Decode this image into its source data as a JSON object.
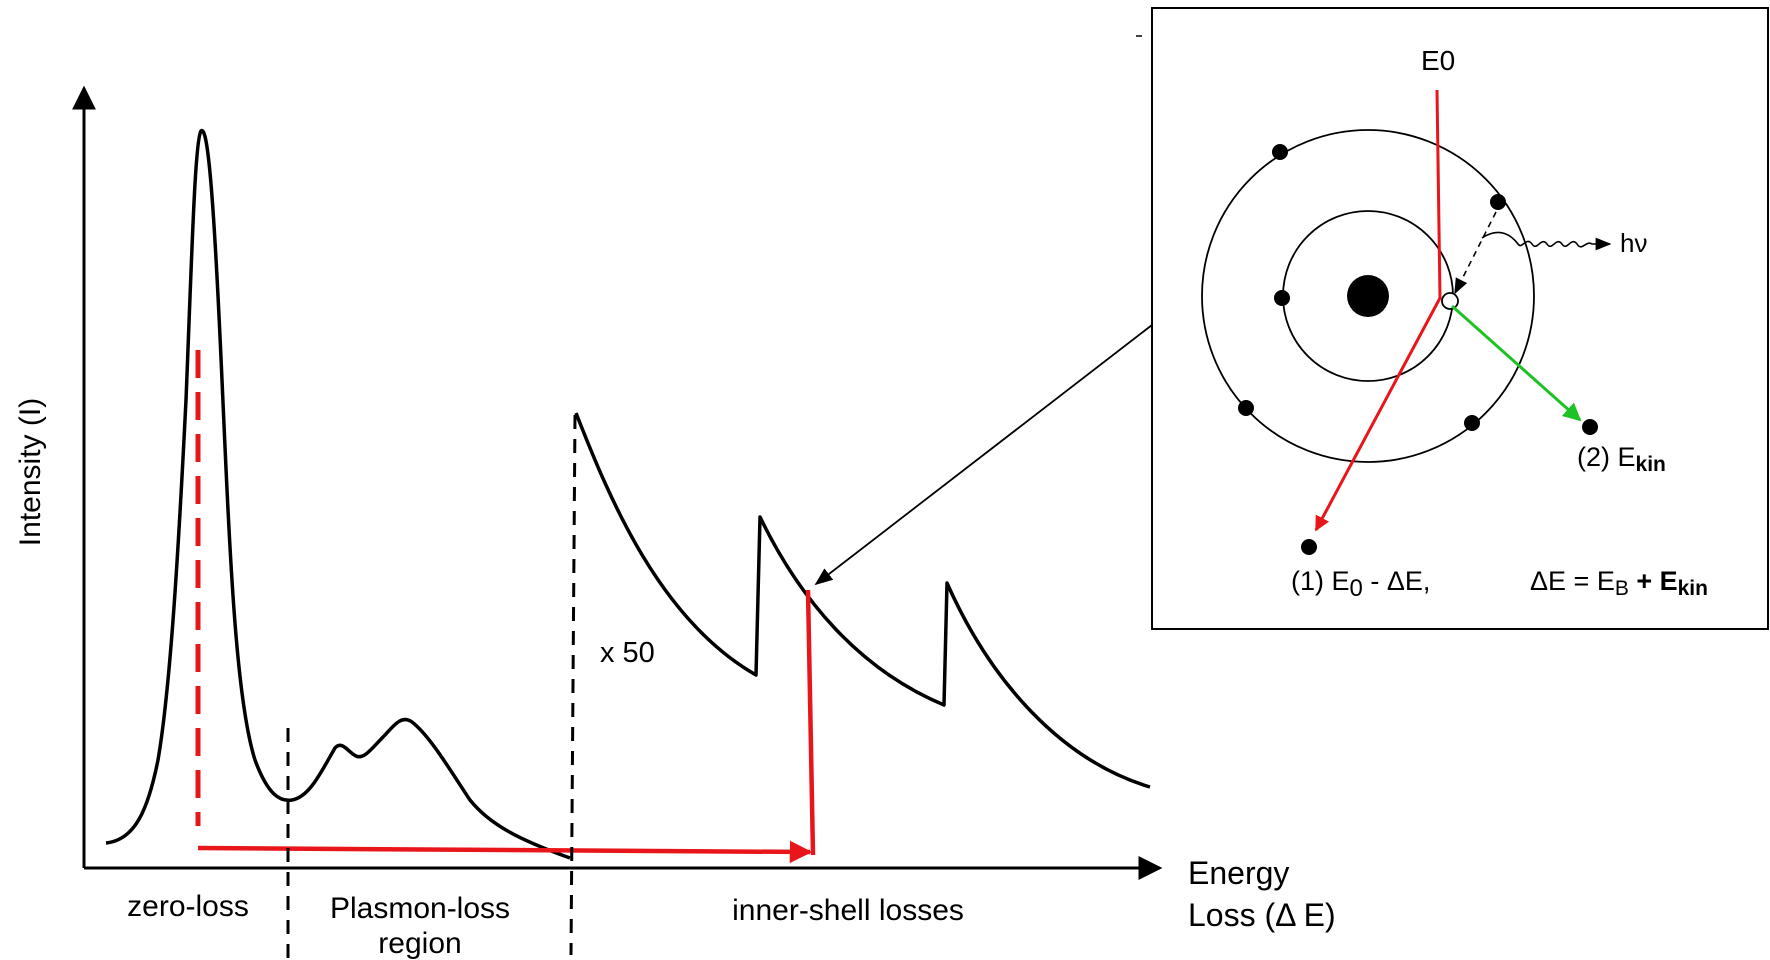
{
  "spectrum": {
    "y_axis_label": "Intensity (I)",
    "x_axis_label_line1": "Energy",
    "x_axis_label_line2": "Loss (Δ E)",
    "region_zero_loss": "zero-loss",
    "region_plasmon_line1": "Plasmon-loss",
    "region_plasmon_line2": "region",
    "region_inner_shell": "inner-shell losses",
    "scale_factor": "x 50"
  },
  "atom_inset": {
    "incident_beam": "E0",
    "photon": "hν",
    "scattered_label_prefix": "(1) ",
    "scattered_E": "E",
    "scattered_sub": "0",
    "scattered_suffix": " - ΔE,",
    "ejected_label_prefix": "(2) ",
    "ejected_E": "E",
    "ejected_sub": "kin",
    "relation_prefix": "ΔE = E",
    "relation_sub_b": "B",
    "relation_plus": " + E",
    "relation_sub_kin": "kin"
  },
  "colors": {
    "curve": "#000000",
    "red_path": "#e8161a",
    "green_path": "#1fc224",
    "inset_border": "#000000"
  }
}
